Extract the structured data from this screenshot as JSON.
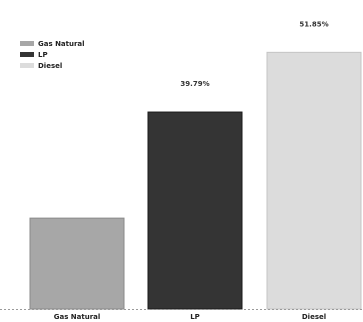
{
  "chart_data": {
    "type": "bar",
    "categories": [
      "Gas Natural",
      "LP",
      "Diesel"
    ],
    "values": [
      18.36,
      39.79,
      51.85
    ],
    "data_labels": [
      "",
      "39.79%",
      "51.85%"
    ],
    "ylim": [
      0,
      60
    ],
    "grid": false,
    "legend": {
      "placement": "top-left",
      "entries": [
        "Gas Natural",
        "LP",
        "Diesel"
      ]
    },
    "colors": [
      "#a7a7a7",
      "#343434",
      "#dcdcdc"
    ],
    "stroke_colors": [
      "#8a8a8a",
      "#1a1a1a",
      "#c4c4c4"
    ]
  }
}
